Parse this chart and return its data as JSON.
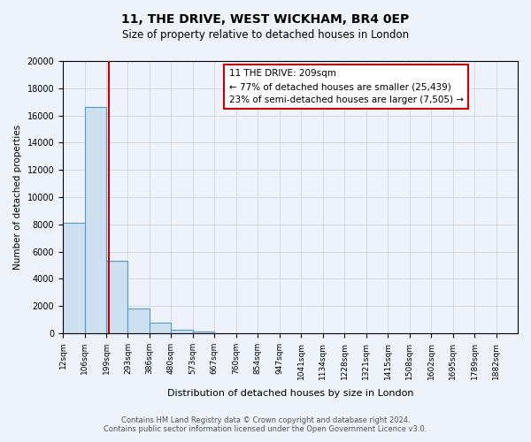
{
  "title1": "11, THE DRIVE, WEST WICKHAM, BR4 0EP",
  "title2": "Size of property relative to detached houses in London",
  "xlabel": "Distribution of detached houses by size in London",
  "ylabel": "Number of detached properties",
  "bar_labels": [
    "12sqm",
    "106sqm",
    "199sqm",
    "293sqm",
    "386sqm",
    "480sqm",
    "573sqm",
    "667sqm",
    "760sqm",
    "854sqm",
    "947sqm",
    "1041sqm",
    "1134sqm",
    "1228sqm",
    "1321sqm",
    "1415sqm",
    "1508sqm",
    "1602sqm",
    "1695sqm",
    "1789sqm",
    "1882sqm"
  ],
  "bar_values": [
    8100,
    16600,
    5300,
    1850,
    750,
    280,
    150,
    0,
    0,
    0,
    0,
    0,
    0,
    0,
    0,
    0,
    0,
    0,
    0,
    0,
    0
  ],
  "bar_color": "#cce0f0",
  "bar_edge_color": "#5599cc",
  "annotation_title": "11 THE DRIVE: 209sqm",
  "annotation_line1": "← 77% of detached houses are smaller (25,439)",
  "annotation_line2": "23% of semi-detached houses are larger (7,505) →",
  "annotation_box_color": "#ffffff",
  "annotation_box_edge": "#cc0000",
  "vline_color": "#cc0000",
  "ylim": [
    0,
    20000
  ],
  "yticks": [
    0,
    2000,
    4000,
    6000,
    8000,
    10000,
    12000,
    14000,
    16000,
    18000,
    20000
  ],
  "background_color": "#eef2fa",
  "grid_color": "#c8cede",
  "footer1": "Contains HM Land Registry data © Crown copyright and database right 2024.",
  "footer2": "Contains public sector information licensed under the Open Government Licence v3.0."
}
